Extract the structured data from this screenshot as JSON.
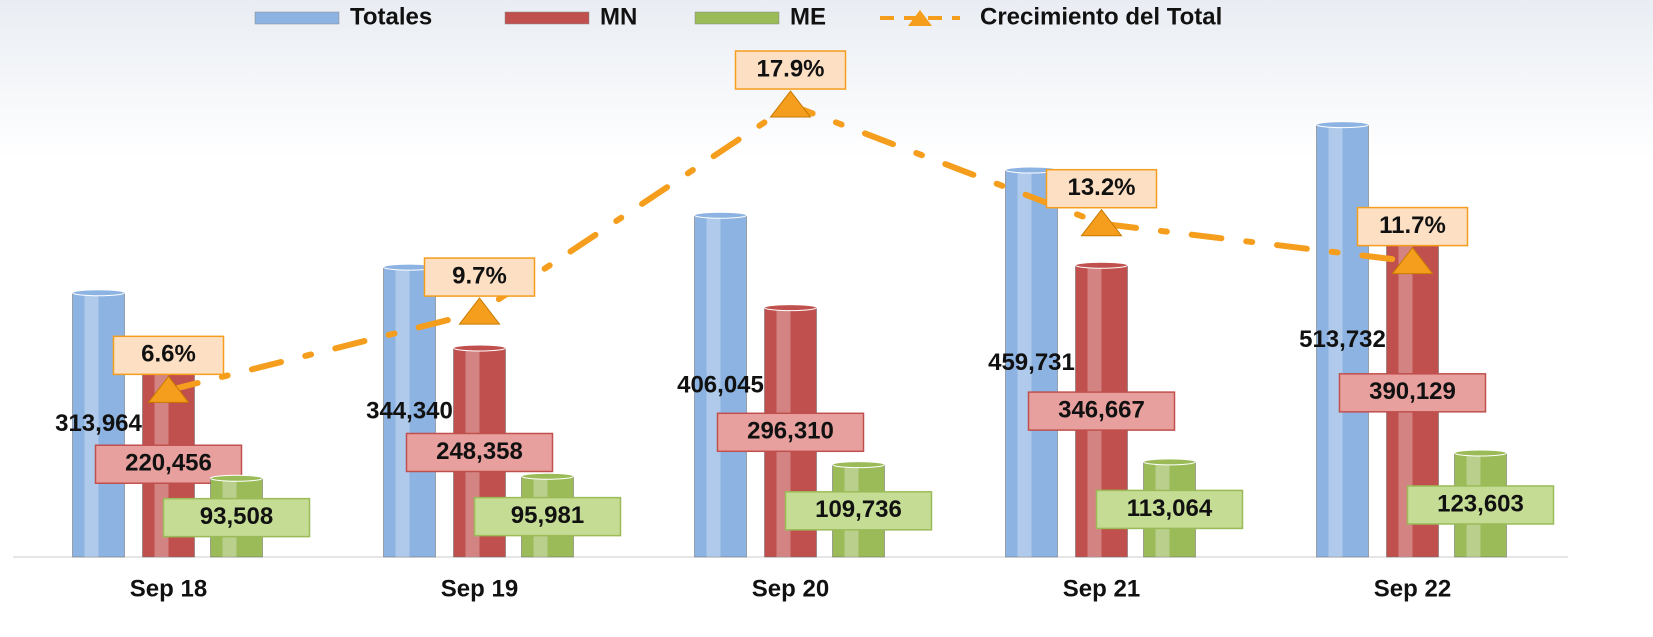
{
  "chart_data": {
    "type": "bar",
    "categories": [
      "Sep 18",
      "Sep 19",
      "Sep 20",
      "Sep 21",
      "Sep 22"
    ],
    "ylim": [
      0,
      600000
    ],
    "y2lim": [
      0,
      20
    ],
    "series": [
      {
        "name": "Totales",
        "color": "#8db3e2",
        "values": [
          313964,
          344340,
          406045,
          459731,
          513732
        ],
        "value_labels": [
          "313,964",
          "344,340",
          "406,045",
          "459,731",
          "513,732"
        ]
      },
      {
        "name": "MN",
        "color": "#c0504d",
        "values": [
          220456,
          248358,
          296310,
          346667,
          390129
        ],
        "value_labels": [
          "220,456",
          "248,358",
          "296,310",
          "346,667",
          "390,129"
        ]
      },
      {
        "name": "ME",
        "color": "#9bbb59",
        "values": [
          93508,
          95981,
          109736,
          113064,
          123603
        ],
        "value_labels": [
          "93,508",
          "95,981",
          "109,736",
          "113,064",
          "123,603"
        ]
      },
      {
        "name": "Crecimiento del Total",
        "type": "line",
        "axis": "y2",
        "color": "#f59d1c",
        "values": [
          6.6,
          9.7,
          17.9,
          13.2,
          11.7
        ],
        "value_labels": [
          "6.6%",
          "9.7%",
          "17.9%",
          "13.2%",
          "11.7%"
        ]
      }
    ]
  }
}
